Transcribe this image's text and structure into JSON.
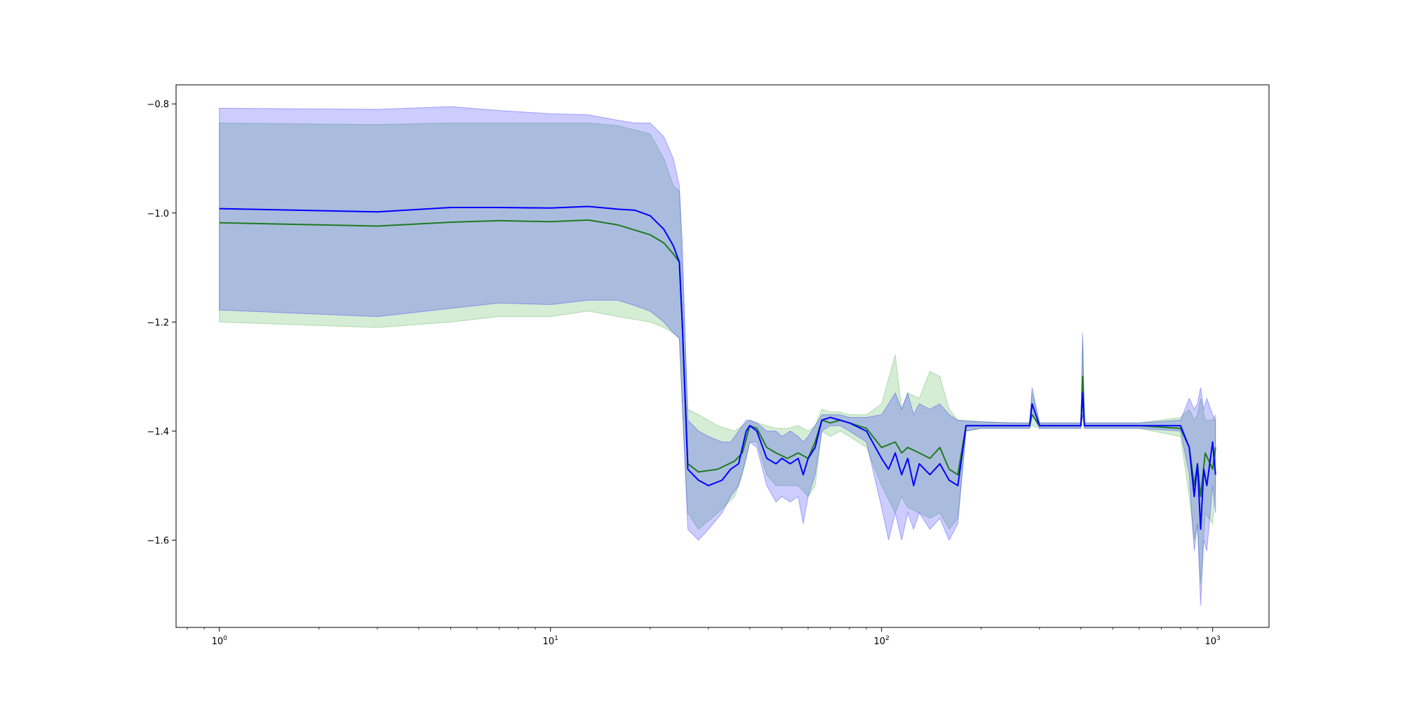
{
  "chart_data": {
    "type": "line",
    "title": "",
    "xlabel": "",
    "ylabel": "",
    "xscale": "log",
    "xlim": [
      0.74,
      1480
    ],
    "ylim": [
      -1.76,
      -0.765
    ],
    "grid": false,
    "legend": "none",
    "x_ticks": [
      {
        "base": "10",
        "exp": "0",
        "value": 1
      },
      {
        "base": "10",
        "exp": "1",
        "value": 10
      },
      {
        "base": "10",
        "exp": "2",
        "value": 100
      },
      {
        "base": "10",
        "exp": "3",
        "value": 1000
      }
    ],
    "y_ticks": [
      {
        "label": "−0.8",
        "value": -0.8
      },
      {
        "label": "−1.0",
        "value": -1.0
      },
      {
        "label": "−1.2",
        "value": -1.2
      },
      {
        "label": "−1.4",
        "value": -1.4
      },
      {
        "label": "−1.6",
        "value": -1.6
      }
    ],
    "series": [
      {
        "color": "#1f7a1f",
        "band_color": "#2ca02c",
        "x": [
          1,
          3,
          5,
          7,
          10,
          13,
          16,
          20,
          22,
          23.5,
          24.5,
          25,
          26,
          28,
          32,
          36,
          38,
          40,
          42,
          45,
          48,
          52,
          56,
          60,
          63,
          66,
          70,
          75,
          80,
          90,
          100,
          110,
          115,
          120,
          130,
          140,
          150,
          160,
          170,
          180,
          200,
          250,
          280,
          285,
          300,
          350,
          400,
          405,
          410,
          450,
          600,
          800,
          850,
          880,
          900,
          920,
          950,
          1000,
          1020
        ],
        "y": [
          -1.018,
          -1.024,
          -1.017,
          -1.014,
          -1.016,
          -1.013,
          -1.022,
          -1.04,
          -1.055,
          -1.075,
          -1.09,
          -1.2,
          -1.46,
          -1.475,
          -1.47,
          -1.455,
          -1.44,
          -1.39,
          -1.395,
          -1.43,
          -1.44,
          -1.45,
          -1.44,
          -1.45,
          -1.42,
          -1.38,
          -1.385,
          -1.38,
          -1.385,
          -1.395,
          -1.43,
          -1.42,
          -1.44,
          -1.43,
          -1.44,
          -1.45,
          -1.43,
          -1.47,
          -1.48,
          -1.39,
          -1.39,
          -1.39,
          -1.39,
          -1.37,
          -1.39,
          -1.39,
          -1.39,
          -1.3,
          -1.39,
          -1.39,
          -1.39,
          -1.395,
          -1.43,
          -1.5,
          -1.46,
          -1.52,
          -1.44,
          -1.47,
          -1.43
        ],
        "upper": [
          -0.835,
          -0.838,
          -0.835,
          -0.835,
          -0.835,
          -0.835,
          -0.84,
          -0.855,
          -0.9,
          -0.95,
          -0.96,
          -1.1,
          -1.36,
          -1.37,
          -1.39,
          -1.4,
          -1.39,
          -1.38,
          -1.385,
          -1.39,
          -1.395,
          -1.395,
          -1.39,
          -1.4,
          -1.39,
          -1.36,
          -1.365,
          -1.365,
          -1.37,
          -1.37,
          -1.35,
          -1.26,
          -1.36,
          -1.33,
          -1.34,
          -1.29,
          -1.3,
          -1.36,
          -1.38,
          -1.38,
          -1.383,
          -1.385,
          -1.385,
          -1.33,
          -1.385,
          -1.385,
          -1.385,
          -1.23,
          -1.385,
          -1.385,
          -1.385,
          -1.375,
          -1.36,
          -1.38,
          -1.37,
          -1.34,
          -1.38,
          -1.38,
          -1.37
        ],
        "lower": [
          -1.2,
          -1.21,
          -1.2,
          -1.19,
          -1.19,
          -1.18,
          -1.19,
          -1.2,
          -1.21,
          -1.22,
          -1.23,
          -1.35,
          -1.55,
          -1.58,
          -1.55,
          -1.52,
          -1.48,
          -1.42,
          -1.42,
          -1.48,
          -1.5,
          -1.5,
          -1.5,
          -1.52,
          -1.5,
          -1.4,
          -1.41,
          -1.4,
          -1.41,
          -1.43,
          -1.5,
          -1.55,
          -1.52,
          -1.54,
          -1.55,
          -1.56,
          -1.55,
          -1.58,
          -1.56,
          -1.4,
          -1.395,
          -1.395,
          -1.395,
          -1.39,
          -1.395,
          -1.395,
          -1.395,
          -1.37,
          -1.395,
          -1.395,
          -1.395,
          -1.41,
          -1.52,
          -1.6,
          -1.57,
          -1.68,
          -1.55,
          -1.57,
          -1.5
        ]
      },
      {
        "color": "#0000ff",
        "band_color": "#0000ff",
        "x": [
          1,
          3,
          5,
          7,
          10,
          13,
          16,
          18,
          20,
          22,
          23.5,
          24.5,
          25,
          26,
          28,
          30,
          33,
          35,
          37,
          39,
          40,
          42,
          45,
          48,
          50,
          53,
          56,
          58,
          60,
          63,
          66,
          70,
          75,
          80,
          90,
          100,
          105,
          110,
          115,
          120,
          125,
          130,
          140,
          150,
          160,
          170,
          180,
          200,
          250,
          280,
          285,
          300,
          350,
          400,
          405,
          410,
          450,
          600,
          800,
          850,
          880,
          900,
          920,
          940,
          960,
          1000,
          1020
        ],
        "y": [
          -0.992,
          -0.998,
          -0.99,
          -0.99,
          -0.991,
          -0.988,
          -0.993,
          -0.995,
          -1.005,
          -1.03,
          -1.06,
          -1.09,
          -1.2,
          -1.47,
          -1.49,
          -1.5,
          -1.49,
          -1.47,
          -1.46,
          -1.4,
          -1.39,
          -1.4,
          -1.45,
          -1.46,
          -1.45,
          -1.46,
          -1.45,
          -1.48,
          -1.45,
          -1.43,
          -1.38,
          -1.375,
          -1.38,
          -1.385,
          -1.4,
          -1.45,
          -1.47,
          -1.44,
          -1.48,
          -1.45,
          -1.5,
          -1.46,
          -1.48,
          -1.46,
          -1.49,
          -1.5,
          -1.39,
          -1.39,
          -1.39,
          -1.39,
          -1.35,
          -1.39,
          -1.39,
          -1.39,
          -1.33,
          -1.39,
          -1.39,
          -1.39,
          -1.39,
          -1.43,
          -1.52,
          -1.46,
          -1.58,
          -1.47,
          -1.5,
          -1.42,
          -1.48
        ],
        "upper": [
          -0.808,
          -0.81,
          -0.805,
          -0.812,
          -0.818,
          -0.82,
          -0.83,
          -0.835,
          -0.835,
          -0.86,
          -0.9,
          -0.95,
          -1.05,
          -1.38,
          -1.4,
          -1.41,
          -1.42,
          -1.42,
          -1.4,
          -1.38,
          -1.38,
          -1.385,
          -1.4,
          -1.4,
          -1.41,
          -1.4,
          -1.41,
          -1.42,
          -1.41,
          -1.39,
          -1.37,
          -1.37,
          -1.37,
          -1.375,
          -1.375,
          -1.37,
          -1.35,
          -1.33,
          -1.36,
          -1.33,
          -1.37,
          -1.35,
          -1.36,
          -1.35,
          -1.37,
          -1.38,
          -1.382,
          -1.383,
          -1.385,
          -1.385,
          -1.32,
          -1.385,
          -1.385,
          -1.385,
          -1.22,
          -1.385,
          -1.385,
          -1.385,
          -1.38,
          -1.34,
          -1.36,
          -1.35,
          -1.32,
          -1.36,
          -1.34,
          -1.37,
          -1.38
        ],
        "lower": [
          -1.178,
          -1.19,
          -1.175,
          -1.165,
          -1.168,
          -1.16,
          -1.16,
          -1.17,
          -1.18,
          -1.2,
          -1.22,
          -1.23,
          -1.35,
          -1.58,
          -1.6,
          -1.58,
          -1.55,
          -1.52,
          -1.5,
          -1.45,
          -1.42,
          -1.43,
          -1.5,
          -1.53,
          -1.52,
          -1.53,
          -1.52,
          -1.57,
          -1.52,
          -1.48,
          -1.4,
          -1.39,
          -1.39,
          -1.4,
          -1.42,
          -1.54,
          -1.6,
          -1.55,
          -1.6,
          -1.55,
          -1.58,
          -1.55,
          -1.58,
          -1.56,
          -1.6,
          -1.57,
          -1.4,
          -1.395,
          -1.395,
          -1.395,
          -1.37,
          -1.395,
          -1.395,
          -1.395,
          -1.37,
          -1.395,
          -1.395,
          -1.395,
          -1.4,
          -1.48,
          -1.62,
          -1.57,
          -1.72,
          -1.6,
          -1.62,
          -1.5,
          -1.55
        ]
      }
    ]
  }
}
